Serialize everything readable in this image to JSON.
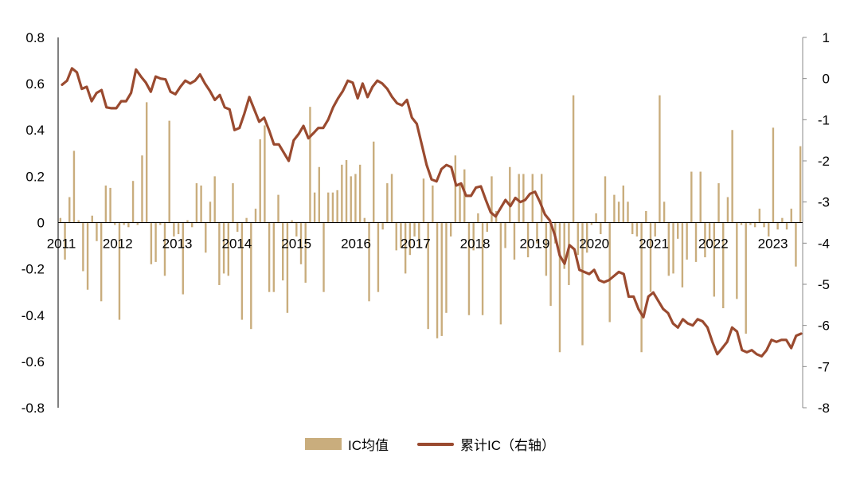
{
  "chart_data": {
    "type": "bar+line",
    "title": "",
    "xlabel": "",
    "ylabel": "",
    "ylabel_right": "",
    "x_ticks": [
      "2011",
      "2012",
      "2013",
      "2014",
      "2015",
      "2016",
      "2017",
      "2018",
      "2019",
      "2020",
      "2021",
      "2022",
      "2023"
    ],
    "y_left_ticks": [
      "0.8",
      "0.6",
      "0.4",
      "0.2",
      "0",
      "-0.2",
      "-0.4",
      "-0.6",
      "-0.8"
    ],
    "y_right_ticks": [
      "1",
      "0",
      "-1",
      "-2",
      "-3",
      "-4",
      "-5",
      "-6",
      "-7",
      "-8"
    ],
    "ylim_left": [
      -0.8,
      0.8
    ],
    "ylim_right": [
      -8,
      1
    ],
    "x_range": [
      2011.0,
      2023.5
    ],
    "legend_position": "bottom",
    "grid": false,
    "series": [
      {
        "name": "IC均值",
        "kind": "bar",
        "axis": "left",
        "color": "#C9AD7D",
        "values": [
          0.02,
          -0.16,
          0.11,
          0.31,
          0.01,
          -0.21,
          -0.29,
          0.03,
          -0.08,
          -0.34,
          0.16,
          0.15,
          -0.01,
          -0.42,
          -0.01,
          -0.02,
          0.18,
          -0.01,
          0.29,
          0.52,
          -0.18,
          -0.17,
          -0.01,
          -0.23,
          0.44,
          -0.06,
          -0.05,
          -0.31,
          0.01,
          -0.02,
          0.17,
          0.16,
          -0.13,
          0.09,
          0.2,
          -0.27,
          -0.22,
          -0.23,
          0.17,
          -0.04,
          -0.42,
          0.02,
          -0.46,
          0.06,
          0.36,
          0.42,
          -0.3,
          -0.3,
          0.12,
          -0.25,
          -0.39,
          0.01,
          -0.06,
          -0.18,
          -0.26,
          0.5,
          0.13,
          0.24,
          -0.3,
          0.13,
          0.13,
          0.14,
          0.25,
          0.27,
          0.2,
          0.21,
          0.25,
          0.02,
          -0.34,
          0.35,
          -0.3,
          -0.03,
          0.17,
          0.21,
          -0.12,
          -0.11,
          -0.22,
          -0.14,
          -0.06,
          -0.11,
          0.19,
          -0.46,
          0.16,
          -0.5,
          -0.49,
          -0.39,
          -0.06,
          0.29,
          0.16,
          0.23,
          -0.4,
          -0.12,
          0.04,
          -0.4,
          -0.04,
          0.2,
          0.05,
          -0.44,
          -0.11,
          0.24,
          -0.16,
          0.21,
          0.21,
          -0.15,
          0.21,
          -0.09,
          0.21,
          -0.23,
          -0.36,
          -0.09,
          -0.56,
          -0.2,
          -0.27,
          0.55,
          -0.14,
          -0.53,
          -0.13,
          -0.01,
          0.04,
          -0.05,
          0.2,
          -0.43,
          0.12,
          0.09,
          0.16,
          0.09,
          -0.05,
          -0.06,
          -0.56,
          0.05,
          -0.3,
          -0.06,
          0.55,
          0.09,
          -0.23,
          -0.22,
          -0.07,
          -0.28,
          -0.16,
          0.22,
          -0.17,
          0.22,
          -0.15,
          -0.08,
          -0.32,
          0.17,
          -0.37,
          0.11,
          0.4,
          -0.33,
          -0.01,
          -0.48,
          -0.01,
          -0.02,
          0.06,
          -0.02,
          -0.06,
          0.41,
          -0.03,
          0.02,
          -0.03,
          0.06,
          -0.19,
          0.33
        ]
      },
      {
        "name": "累计IC（右轴）",
        "kind": "line",
        "axis": "right",
        "color": "#9A4A2F",
        "values": [
          -0.15,
          -0.05,
          0.25,
          0.15,
          -0.25,
          -0.2,
          -0.55,
          -0.35,
          -0.28,
          -0.7,
          -0.72,
          -0.72,
          -0.55,
          -0.55,
          -0.35,
          0.22,
          0.05,
          -0.1,
          -0.32,
          0.05,
          0.0,
          -0.02,
          -0.32,
          -0.38,
          -0.2,
          -0.05,
          -0.12,
          -0.05,
          0.1,
          -0.12,
          -0.3,
          -0.52,
          -0.4,
          -0.7,
          -0.75,
          -1.25,
          -1.2,
          -0.85,
          -0.45,
          -0.75,
          -1.05,
          -0.95,
          -1.25,
          -1.6,
          -1.6,
          -1.8,
          -2.0,
          -1.5,
          -1.35,
          -1.15,
          -1.45,
          -1.33,
          -1.2,
          -1.2,
          -1.0,
          -0.7,
          -0.48,
          -0.3,
          -0.05,
          -0.1,
          -0.48,
          -0.12,
          -0.45,
          -0.2,
          -0.05,
          -0.12,
          -0.25,
          -0.45,
          -0.6,
          -0.65,
          -0.52,
          -0.95,
          -1.1,
          -1.6,
          -2.1,
          -2.45,
          -2.5,
          -2.2,
          -2.1,
          -2.15,
          -2.6,
          -2.55,
          -2.85,
          -2.85,
          -2.65,
          -2.62,
          -2.95,
          -3.25,
          -3.35,
          -3.15,
          -2.95,
          -3.1,
          -2.9,
          -3.0,
          -2.95,
          -2.8,
          -2.75,
          -3.0,
          -3.3,
          -3.45,
          -3.8,
          -4.3,
          -4.5,
          -4.05,
          -4.15,
          -4.65,
          -4.7,
          -4.75,
          -4.65,
          -4.9,
          -4.95,
          -4.9,
          -4.8,
          -4.7,
          -4.75,
          -5.3,
          -5.3,
          -5.6,
          -5.8,
          -5.3,
          -5.2,
          -5.4,
          -5.6,
          -5.7,
          -5.95,
          -6.05,
          -5.85,
          -5.95,
          -6.0,
          -5.85,
          -5.9,
          -6.05,
          -6.4,
          -6.7,
          -6.55,
          -6.4,
          -6.05,
          -6.15,
          -6.6,
          -6.65,
          -6.6,
          -6.7,
          -6.75,
          -6.6,
          -6.35,
          -6.4,
          -6.35,
          -6.35,
          -6.55,
          -6.25,
          -6.2
        ]
      }
    ]
  },
  "legend": {
    "bar_label": "IC均值",
    "line_label": "累计IC（右轴）"
  }
}
